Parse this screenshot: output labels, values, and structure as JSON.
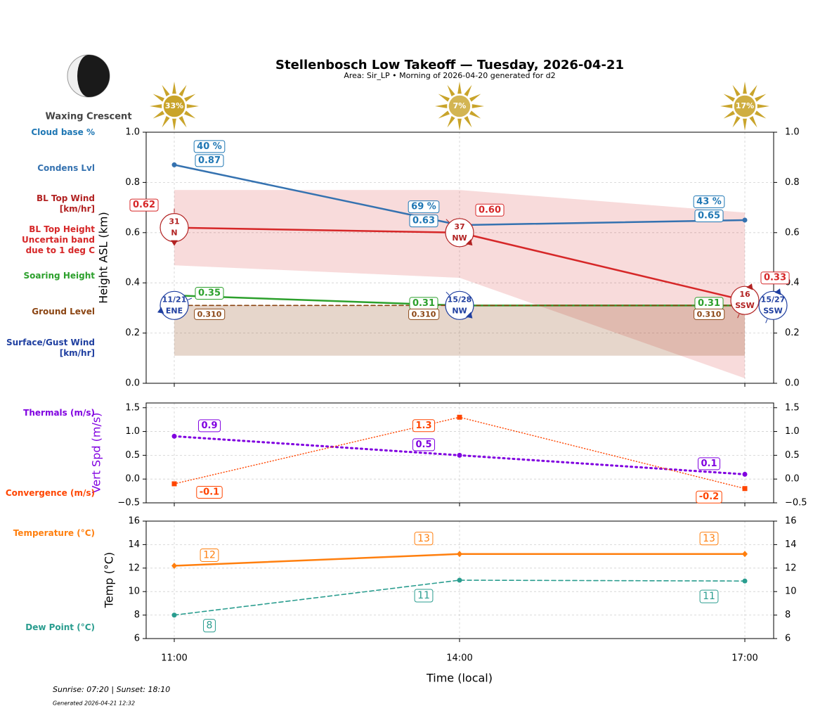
{
  "title": "Stellenbosch Low Takeoff — Tuesday, 2026-04-21",
  "subtitle": "Area: Sir_LP • Morning of 2026-04-20 generated for d2",
  "moon_phase": "Waxing Crescent",
  "footer": {
    "sun_times": "Sunrise: 07:20 | Sunset: 18:10",
    "generated": "Generated 2026-04-21 12:32"
  },
  "chart_data": [
    {
      "type": "line",
      "ylabel": "Height ASL (km)",
      "categories": [
        "11:00",
        "14:00",
        "17:00"
      ],
      "ylim": [
        0,
        1
      ],
      "yticks": [
        {
          "value": 0,
          "label": "0.0"
        },
        0.2,
        0.4,
        0.6,
        0.8,
        {
          "value": 1,
          "label": "1.0"
        }
      ],
      "grid": true,
      "sun": {
        "values": [
          33,
          7,
          17
        ],
        "value_labels": [
          "33%",
          "7%",
          "17%"
        ],
        "color": "#c9a42a"
      },
      "series": [
        {
          "name": "Cloud base %",
          "color": "#1f77b4",
          "values": [
            40,
            69,
            43
          ],
          "value_labels": [
            "40 %",
            "69 %",
            "43 %"
          ]
        },
        {
          "name": "Condens Lvl",
          "color": "#3572b0",
          "values": [
            0.87,
            0.63,
            0.65
          ],
          "linestyle": "solid",
          "marker": "circle"
        },
        {
          "name": "BL Top Wind\n[km/hr]",
          "color": "#b22222",
          "values": [
            31,
            37,
            16
          ],
          "directions": [
            "N",
            "NW",
            "SSW"
          ]
        },
        {
          "name": "BL Top Height\nUncertain band\ndue to 1 deg C",
          "color": "#d62728",
          "values": [
            0.62,
            0.6,
            0.33
          ],
          "value_labels": [
            "0.62",
            "0.60",
            "0.33"
          ],
          "upper": [
            0.77,
            0.77,
            0.68
          ],
          "lower": [
            0.47,
            0.42,
            0.02
          ],
          "linestyle": "solid"
        },
        {
          "name": "Soaring Height",
          "color": "#2ca02c",
          "values": [
            0.35,
            0.31,
            0.31
          ],
          "linestyle": "solid"
        },
        {
          "name": "Ground Level",
          "color": "#8b4513",
          "values": [
            0.31,
            0.31,
            0.31
          ],
          "value_labels": [
            "0.310",
            "0.310",
            "0.310"
          ],
          "fill_to": 0.11,
          "linestyle": "dashed"
        },
        {
          "name": "Surface/Gust Wind\n[km/hr]",
          "color": "#1f3fa0",
          "values": [
            11,
            15,
            15
          ],
          "gusts": [
            21,
            28,
            27
          ],
          "value_labels": [
            "11/21",
            "15/28",
            "15/27"
          ],
          "directions": [
            "ENE",
            "NW",
            "SSW"
          ]
        }
      ]
    },
    {
      "type": "line",
      "ylabel": "Vert Spd (m/s)",
      "ylabel_color": "#8000e0",
      "ylim": [
        -0.5,
        1.6
      ],
      "yticks": [
        {
          "value": -0.5,
          "label": "−0.5"
        },
        {
          "value": 0,
          "label": "0.0"
        },
        0.5,
        {
          "value": 1,
          "label": "1.0"
        },
        1.5
      ],
      "grid": true,
      "series": [
        {
          "name": "Thermals (m/s)",
          "color": "#8000e0",
          "values": [
            0.9,
            0.5,
            0.1
          ],
          "linestyle": "dotted",
          "marker": "circle"
        },
        {
          "name": "Convergence (m/s)",
          "color": "#ff4500",
          "values": [
            -0.1,
            1.3,
            -0.2
          ],
          "linestyle": "fine-dotted",
          "marker": "square"
        }
      ]
    },
    {
      "type": "line",
      "ylabel": "Temp (°C)",
      "xlabel": "Time (local)",
      "ylim": [
        6,
        16
      ],
      "yticks": [
        6,
        8,
        10,
        12,
        14,
        16
      ],
      "grid": true,
      "series": [
        {
          "name": "Temperature (°C)",
          "color": "#ff7f0e",
          "values": [
            12.2,
            13.2,
            13.2
          ],
          "value_labels": [
            "12",
            "13",
            "13"
          ],
          "linestyle": "solid",
          "marker": "diamond"
        },
        {
          "name": "Dew Point (°C)",
          "color": "#2a9d8f",
          "values": [
            8,
            10.97,
            10.9
          ],
          "value_labels": [
            "8",
            "11",
            "11"
          ],
          "linestyle": "dashed",
          "marker": "circle"
        }
      ]
    }
  ]
}
